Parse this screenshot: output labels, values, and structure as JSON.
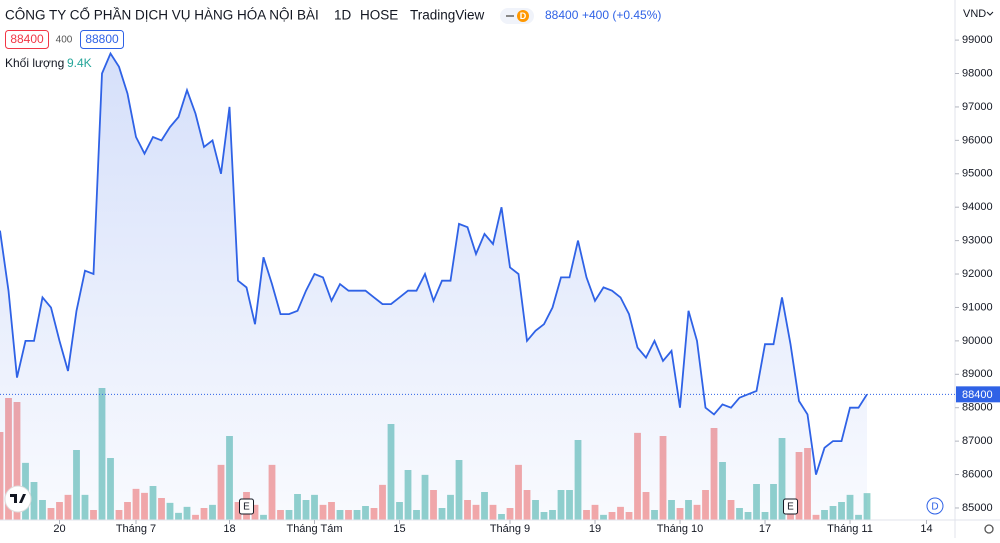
{
  "header": {
    "title": "CÔNG TY CỔ PHẦN DỊCH VỤ HÀNG HÓA NỘI BÀI",
    "interval": "1D",
    "exchange": "HOSE",
    "source": "TradingView",
    "badge": "D",
    "last": "88400",
    "change": "+400 (+0.45%)",
    "bid": "88400",
    "spread": "400",
    "ask": "88800",
    "volume_label": "Khối lượng",
    "volume_value": "9.4K",
    "currency": "VND",
    "corner_badge": "D"
  },
  "chart_data": {
    "type": "area",
    "values": [
      93300,
      91500,
      88900,
      90000,
      90000,
      91300,
      91000,
      90000,
      89100,
      90900,
      92100,
      92000,
      98000,
      98600,
      98200,
      97400,
      96100,
      95600,
      96100,
      96000,
      96400,
      96700,
      97500,
      96800,
      95800,
      96000,
      95000,
      97000,
      91800,
      91600,
      90500,
      92500,
      91700,
      90800,
      90800,
      90900,
      91500,
      92000,
      91900,
      91200,
      91700,
      91500,
      91500,
      91500,
      91300,
      91100,
      91100,
      91300,
      91500,
      91500,
      92000,
      91200,
      91800,
      91800,
      93500,
      93400,
      92600,
      93200,
      92900,
      94000,
      92200,
      92000,
      90000,
      90300,
      90500,
      91000,
      91900,
      91900,
      93000,
      91900,
      91200,
      91600,
      91500,
      91300,
      90800,
      89800,
      89500,
      90000,
      89400,
      89700,
      88000,
      90900,
      90000,
      88000,
      87800,
      88100,
      88000,
      88300,
      88400,
      88500,
      89900,
      89900,
      91300,
      89900,
      88200,
      87800,
      86000,
      86800,
      87000,
      87000,
      88000,
      88000,
      88400
    ],
    "volumes": [
      30800,
      42700,
      41300,
      20000,
      13300,
      7000,
      4200,
      6300,
      8800,
      24500,
      8800,
      3500,
      46200,
      21700,
      3500,
      6300,
      10900,
      9500,
      11900,
      7700,
      6000,
      2500,
      4600,
      1800,
      4200,
      5300,
      19300,
      29400,
      6300,
      9800,
      5300,
      1800,
      19300,
      3500,
      3500,
      9100,
      7000,
      8800,
      5300,
      6300,
      3500,
      3500,
      3500,
      4900,
      4200,
      12300,
      33600,
      6300,
      17500,
      3500,
      15800,
      10500,
      4200,
      8800,
      21000,
      7000,
      5300,
      9800,
      5300,
      2100,
      4200,
      19300,
      10500,
      7000,
      2800,
      3500,
      10500,
      10500,
      28000,
      3500,
      5300,
      1800,
      2800,
      4600,
      2800,
      30500,
      9800,
      3500,
      29400,
      7000,
      4200,
      7000,
      5300,
      10500,
      32200,
      20300,
      7000,
      4200,
      2800,
      12600,
      2800,
      12600,
      28700,
      7000,
      23800,
      25200,
      1800,
      3500,
      4900,
      6300,
      8800,
      1800,
      9400
    ],
    "color": "#2f62e6",
    "up_color": "#92d2cc",
    "down_color": "#f7a9a7",
    "ylim": [
      84640,
      100200
    ],
    "yticks": [
      85000,
      86000,
      87000,
      88000,
      89000,
      90000,
      91000,
      92000,
      93000,
      94000,
      95000,
      96000,
      97000,
      98000,
      99000
    ],
    "xlim": [
      0,
      112.35
    ],
    "xticks": [
      {
        "value": 7,
        "label": "20"
      },
      {
        "value": 16,
        "label": "Tháng 7"
      },
      {
        "value": 27,
        "label": "18"
      },
      {
        "value": 37,
        "label": "Tháng Tám"
      },
      {
        "value": 47,
        "label": "15"
      },
      {
        "value": 60,
        "label": "Tháng 9"
      },
      {
        "value": 70,
        "label": "19"
      },
      {
        "value": 80,
        "label": "Tháng 10"
      },
      {
        "value": 90,
        "label": "17"
      },
      {
        "value": 100,
        "label": "Tháng 11"
      },
      {
        "value": 109,
        "label": "14"
      }
    ],
    "events": [
      {
        "index": 29,
        "label": "E"
      },
      {
        "index": 93,
        "label": "E"
      }
    ]
  }
}
